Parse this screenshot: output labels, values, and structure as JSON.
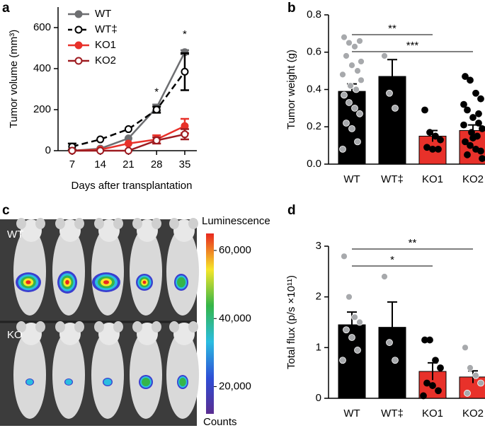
{
  "chart_data": [
    {
      "type": "line",
      "panel": "a",
      "xlabel": "Days after transplantation",
      "ylabel": "Tumor volume (mm³)",
      "x": [
        7,
        14,
        21,
        28,
        35
      ],
      "xlim": [
        3.5,
        38
      ],
      "xticks": [
        7,
        14,
        21,
        28,
        35
      ],
      "ylim": [
        0,
        700
      ],
      "yticks": [
        0,
        200,
        400,
        600
      ],
      "legend": "upper left",
      "series": [
        {
          "name": "WT",
          "color": "#6d6e71",
          "linestyle": "solid",
          "marker": "filled",
          "values": [
            0,
            10,
            60,
            210,
            480
          ],
          "errors": [
            null,
            null,
            null,
            15,
            10
          ]
        },
        {
          "name": "WT‡",
          "color": "#000000",
          "linestyle": "dashed",
          "marker": "open",
          "values": [
            20,
            55,
            105,
            200,
            385
          ],
          "errors": [
            15,
            null,
            null,
            15,
            90
          ]
        },
        {
          "name": "KO1",
          "color": "#e8312a",
          "linestyle": "solid",
          "marker": "filled",
          "values": [
            0,
            5,
            35,
            55,
            120
          ],
          "errors": [
            null,
            null,
            null,
            20,
            35
          ]
        },
        {
          "name": "KO2",
          "color": "#9e1b20",
          "linestyle": "solid",
          "marker": "open",
          "values": [
            0,
            0,
            0,
            50,
            80
          ],
          "errors": [
            null,
            null,
            null,
            15,
            25
          ]
        }
      ],
      "annotations": [
        {
          "x": 28,
          "y": 285,
          "text": "*"
        },
        {
          "x": 35,
          "y": 565,
          "text": "*"
        }
      ]
    },
    {
      "type": "bar",
      "panel": "b",
      "ylabel": "Tumor weight (g)",
      "categories": [
        "WT",
        "WT‡",
        "KO1",
        "KO2"
      ],
      "values": [
        0.39,
        0.47,
        0.15,
        0.18
      ],
      "errors": [
        0.04,
        0.09,
        0.03,
        0.03
      ],
      "colors": [
        "#000000",
        "#000000",
        "#e8312a",
        "#e8312a"
      ],
      "point_colors": [
        "#a7a9ac",
        "#a7a9ac",
        "#000000",
        "#000000"
      ],
      "ylim": [
        0,
        0.8
      ],
      "yticks": [
        {
          "value": 0,
          "label": "0.0"
        },
        0.2,
        0.4,
        0.6,
        0.8
      ],
      "points": [
        [
          0.68,
          0.65,
          0.63,
          0.66,
          0.58,
          0.53,
          0.5,
          0.48,
          0.45,
          0.42,
          0.4,
          0.37,
          0.33,
          0.3,
          0.27,
          0.22,
          0.19,
          0.12,
          0.08,
          0.55
        ],
        [
          0.58,
          0.38,
          0.3
        ],
        [
          0.29,
          0.17,
          0.15,
          0.13,
          0.09,
          0.08,
          0.08
        ],
        [
          0.47,
          0.45,
          0.38,
          0.35,
          0.29,
          0.25,
          0.22,
          0.21,
          0.19,
          0.17,
          0.15,
          0.12,
          0.1,
          0.08,
          0.07,
          0.05,
          0.14,
          0.27,
          0.32,
          0.03
        ]
      ],
      "significance": [
        {
          "label": "**",
          "groups": [
            "WT",
            "KO1"
          ]
        },
        {
          "label": "***",
          "groups": [
            "WT",
            "KO2"
          ]
        }
      ]
    },
    {
      "type": "image",
      "panel": "c",
      "row_labels": [
        "WT",
        "KO"
      ],
      "colorbar": {
        "label": "Luminescence",
        "bottom_label": "Counts",
        "lim": [
          12000,
          65000
        ],
        "ticks": [
          {
            "value": 60000,
            "label": "60,000"
          },
          {
            "value": 40000,
            "label": "40,000"
          },
          {
            "value": 20000,
            "label": "20,000"
          }
        ]
      }
    },
    {
      "type": "bar",
      "panel": "d",
      "ylabel": "Total flux (p/s ×10¹¹)",
      "categories": [
        "WT",
        "WT‡",
        "KO1",
        "KO2"
      ],
      "values": [
        1.45,
        1.4,
        0.53,
        0.42
      ],
      "errors": [
        0.25,
        0.5,
        0.17,
        0.12
      ],
      "colors": [
        "#000000",
        "#000000",
        "#e8312a",
        "#e8312a"
      ],
      "point_colors": [
        "#a7a9ac",
        "#a7a9ac",
        "#000000",
        "#a7a9ac"
      ],
      "ylim": [
        0,
        3
      ],
      "yticks": [
        0,
        1,
        2,
        3
      ],
      "points": [
        [
          2.8,
          2.0,
          1.6,
          1.5,
          1.35,
          1.2,
          0.95,
          0.75
        ],
        [
          2.4,
          1.1,
          0.75
        ],
        [
          1.15,
          1.15,
          0.75,
          0.6,
          0.3,
          0.25,
          0.15,
          0.05
        ],
        [
          1.0,
          0.6,
          0.45,
          0.3,
          0.1
        ]
      ],
      "significance": [
        {
          "label": "**",
          "groups": [
            "WT",
            "KO2"
          ]
        },
        {
          "label": "*",
          "groups": [
            "WT",
            "KO1"
          ]
        }
      ]
    }
  ]
}
